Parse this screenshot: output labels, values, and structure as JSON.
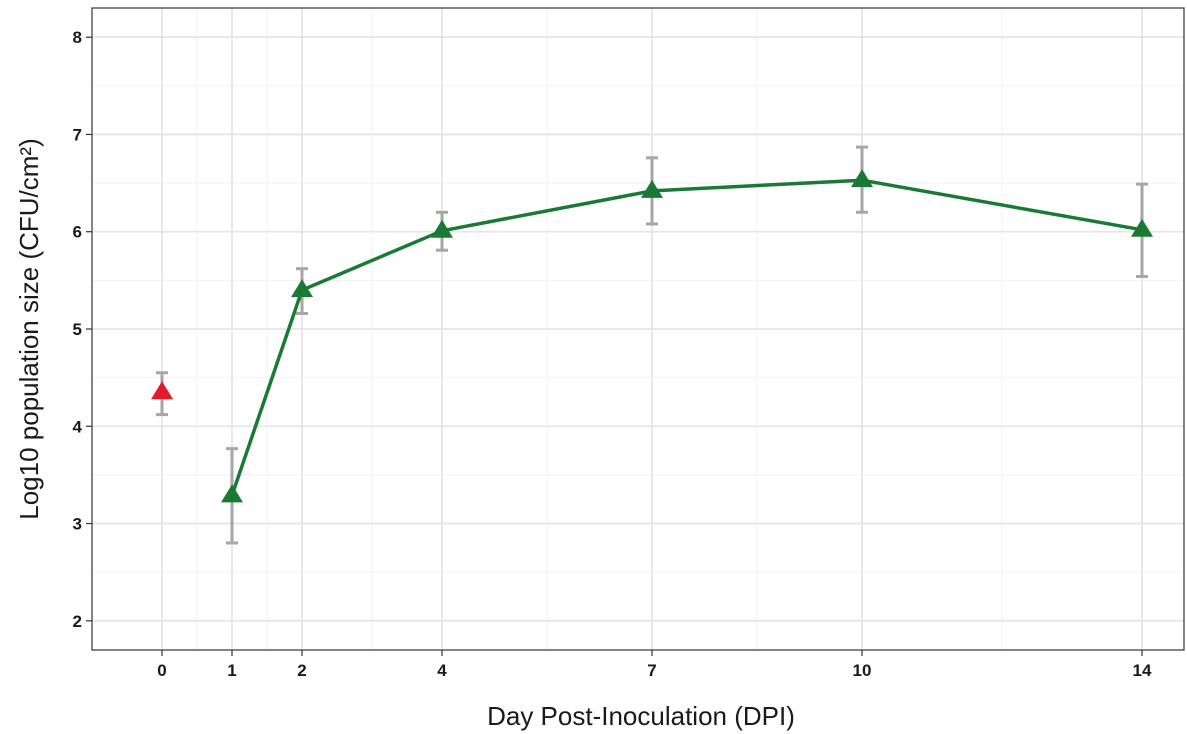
{
  "chart_data": {
    "type": "line",
    "xlabel": "Day Post-Inoculation (DPI)",
    "ylabel": "Log10 population size (CFU/cm²)",
    "xlim": [
      -1,
      14.6
    ],
    "ylim": [
      1.7,
      8.3
    ],
    "x_ticks": [
      0,
      1,
      2,
      4,
      7,
      10,
      14
    ],
    "y_ticks": [
      2,
      3,
      4,
      5,
      6,
      7,
      8
    ],
    "grid": true,
    "legend": "none",
    "series": [
      {
        "color": "#1a7a35",
        "line": true,
        "marker": "triangle",
        "errorbar_color": "#a6a6a6",
        "points": [
          {
            "x": 1,
            "y": 3.29,
            "ymin": 2.8,
            "ymax": 3.77
          },
          {
            "x": 2,
            "y": 5.4,
            "ymin": 5.16,
            "ymax": 5.62
          },
          {
            "x": 4,
            "y": 6.01,
            "ymin": 5.81,
            "ymax": 6.2
          },
          {
            "x": 7,
            "y": 6.42,
            "ymin": 6.08,
            "ymax": 6.76
          },
          {
            "x": 10,
            "y": 6.53,
            "ymin": 6.2,
            "ymax": 6.87
          },
          {
            "x": 14,
            "y": 6.02,
            "ymin": 5.54,
            "ymax": 6.49
          }
        ]
      },
      {
        "color": "#e31a2b",
        "line": false,
        "marker": "triangle",
        "errorbar_color": "#a6a6a6",
        "points": [
          {
            "x": 0,
            "y": 4.35,
            "ymin": 4.12,
            "ymax": 4.55
          }
        ]
      }
    ]
  }
}
